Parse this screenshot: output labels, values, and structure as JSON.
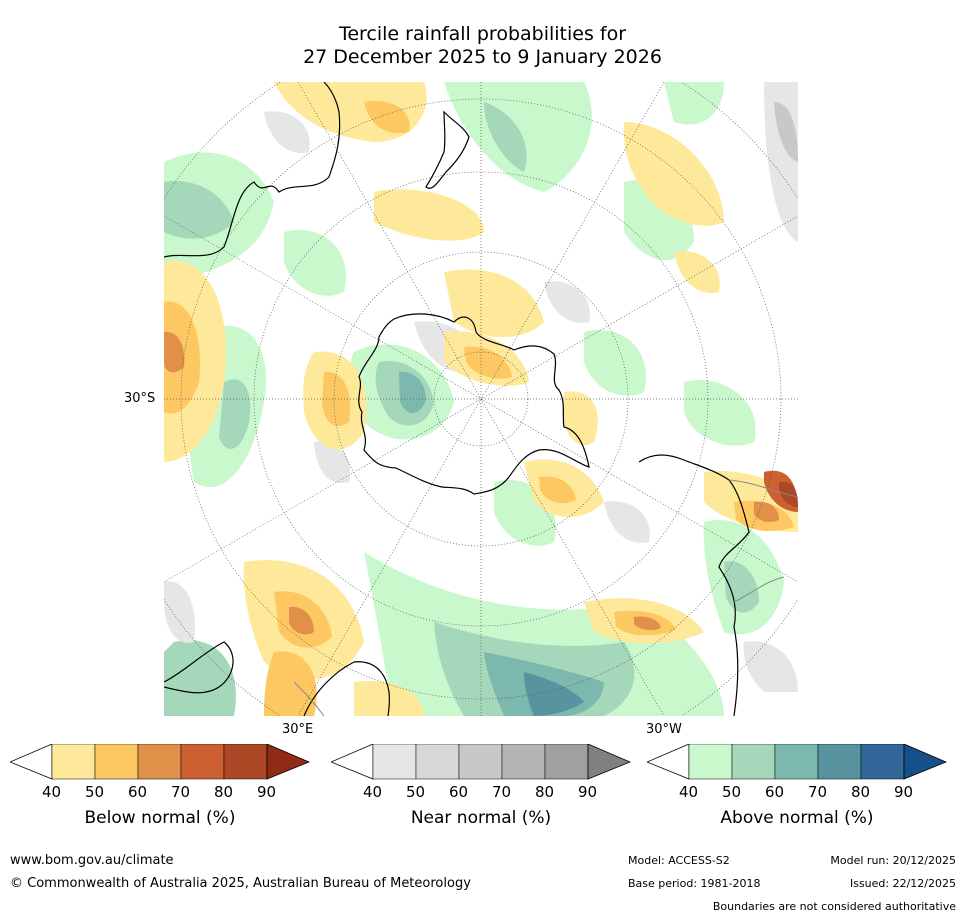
{
  "title": {
    "line1": "Tercile rainfall probabilities for",
    "line2": "27 December 2025 to 9 January 2026"
  },
  "map": {
    "lat_label": "30°S",
    "lon_labels": {
      "east": "30°E",
      "west": "30°W"
    }
  },
  "legends": [
    {
      "label": "Below normal (%)",
      "ticks": [
        "40",
        "50",
        "60",
        "70",
        "80",
        "90"
      ],
      "colors": [
        "#ffffff",
        "#fee99a",
        "#fdc862",
        "#e09048",
        "#cd6030",
        "#ad4827",
        "#8f2b16"
      ]
    },
    {
      "label": "Near normal (%)",
      "ticks": [
        "40",
        "50",
        "60",
        "70",
        "80",
        "90"
      ],
      "colors": [
        "#ffffff",
        "#e6e6e6",
        "#d7d7d7",
        "#c8c8c8",
        "#b5b5b5",
        "#a0a0a0",
        "#808080"
      ]
    },
    {
      "label": "Above normal (%)",
      "ticks": [
        "40",
        "50",
        "60",
        "70",
        "80",
        "90"
      ],
      "colors": [
        "#ffffff",
        "#c8f8cc",
        "#a5d8bb",
        "#7cb8ae",
        "#5993a0",
        "#316899",
        "#15508a"
      ]
    }
  ],
  "footer": {
    "website": "www.bom.gov.au/climate",
    "copyright": "© Commonwealth of Australia 2025, Australian Bureau of Meteorology",
    "model": "Model: ACCESS-S2",
    "model_run": "Model run: 20/12/2025",
    "base_period": "Base period: 1981-2018",
    "issued": "Issued: 22/12/2025",
    "disclaimer": "Boundaries are not considered authoritative"
  }
}
